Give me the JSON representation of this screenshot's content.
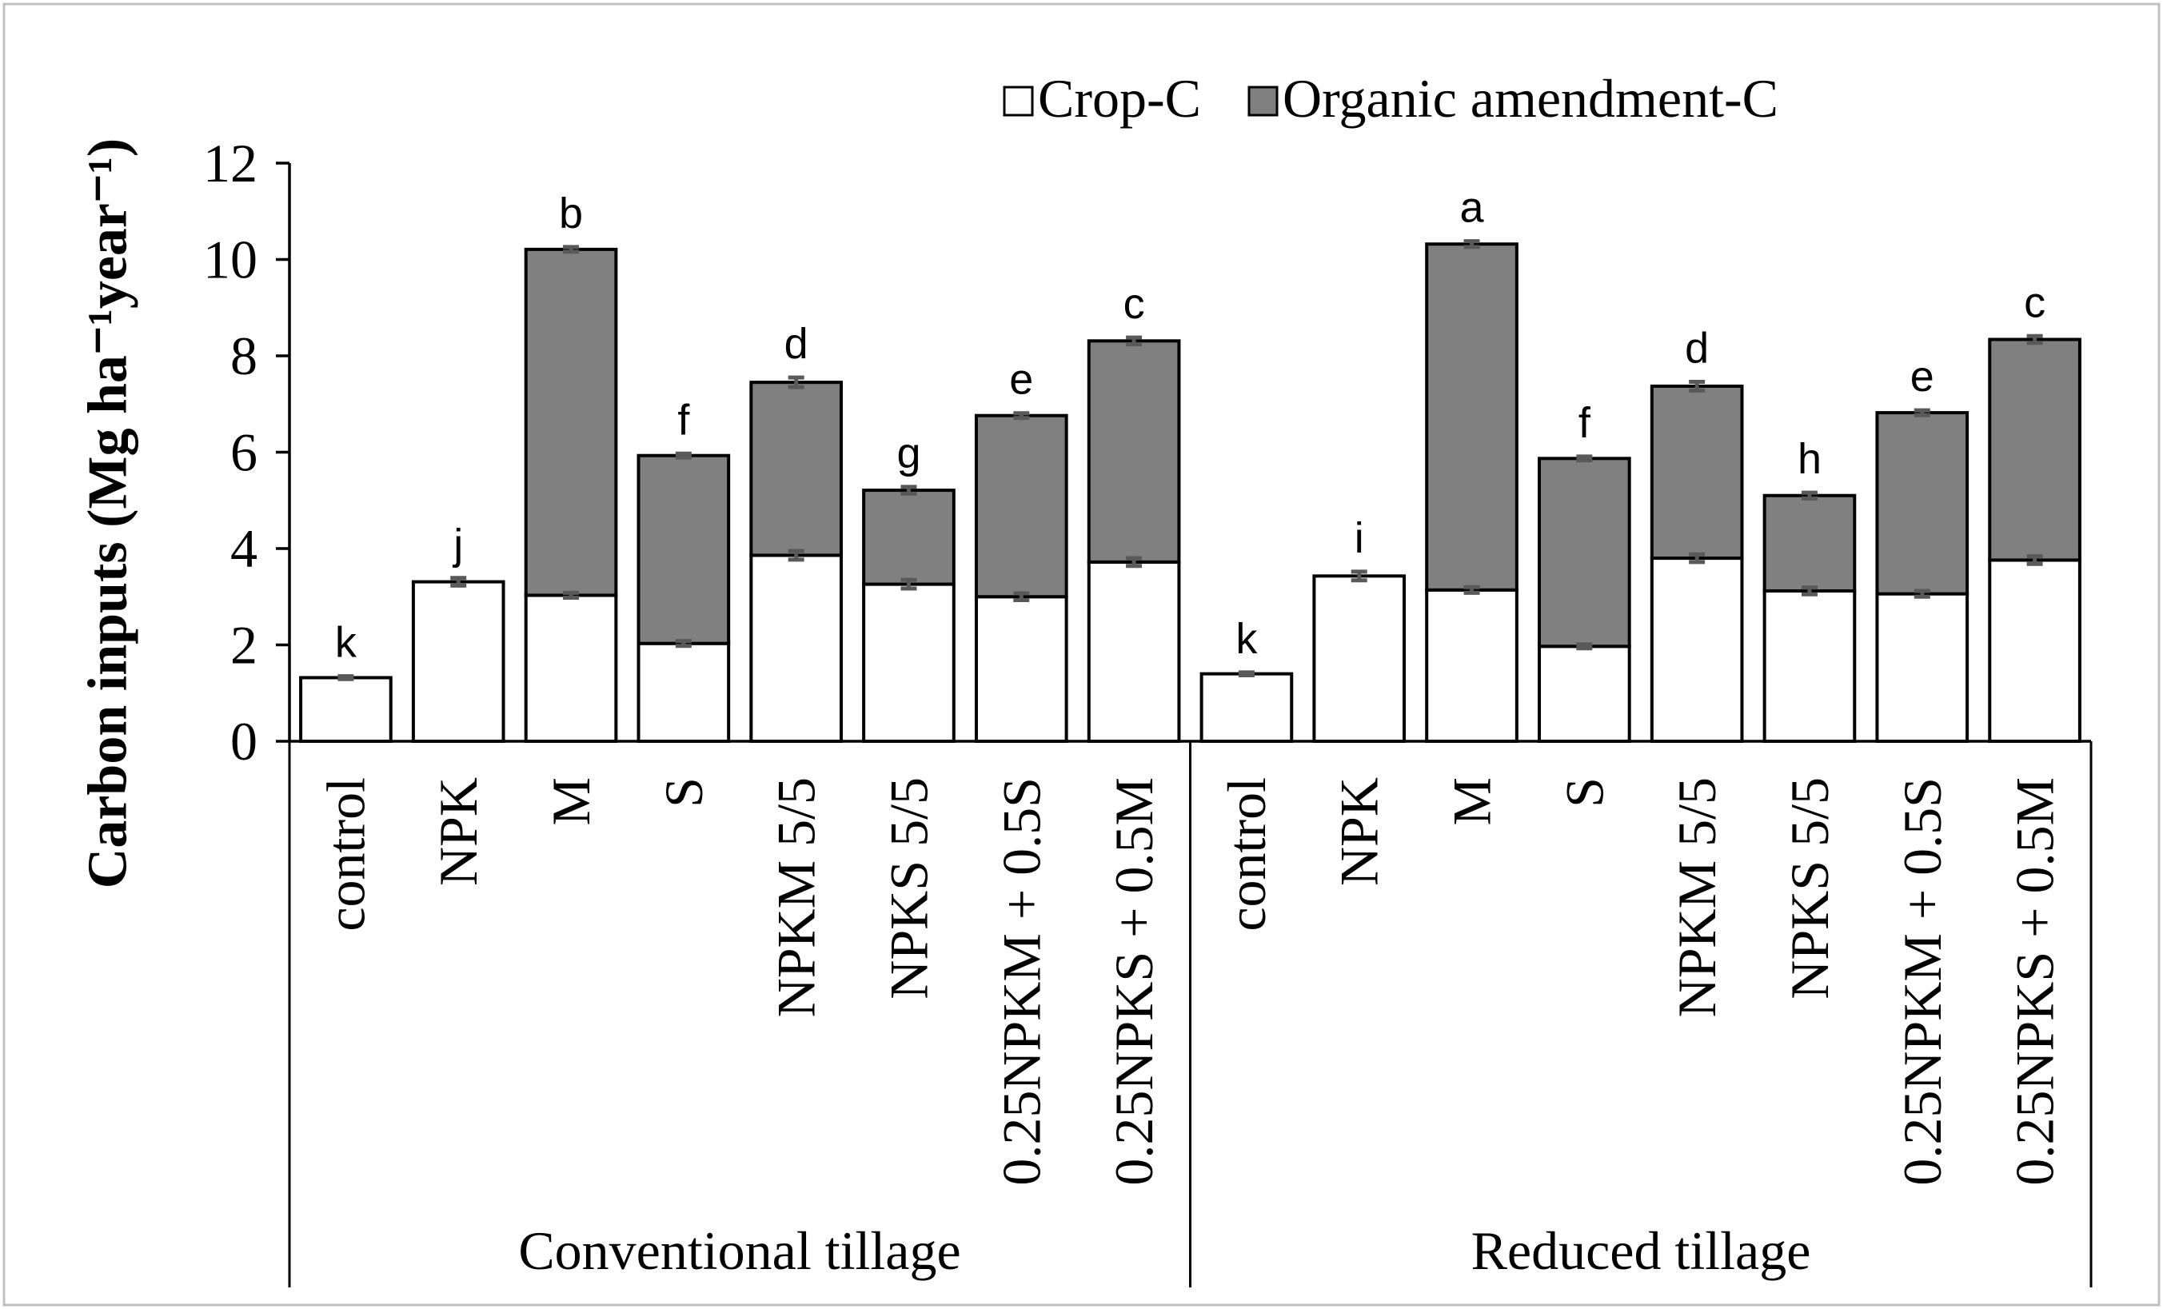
{
  "chart_data": {
    "type": "bar",
    "stacked": true,
    "ylabel": "Carbon inputs (Mg ha⁻¹year⁻¹)",
    "ylim": [
      0,
      12
    ],
    "yticks": [
      0,
      2,
      4,
      6,
      8,
      10,
      12
    ],
    "grid": false,
    "legend_position": "top",
    "groups": [
      "Conventional tillage",
      "Reduced tillage"
    ],
    "categories": [
      "control",
      "NPK",
      "M",
      "S",
      "NPKM 5/5",
      "NPKS 5/5",
      "0.25NPKM + 0.5S",
      "0.25NPKS + 0.5M"
    ],
    "series": [
      {
        "name": "Crop-C",
        "color": "#ffffff",
        "values": [
          [
            1.32,
            3.31,
            3.03,
            2.03,
            3.86,
            3.26,
            3.0,
            3.72
          ],
          [
            1.4,
            3.43,
            3.14,
            1.97,
            3.8,
            3.12,
            3.06,
            3.76
          ]
        ],
        "errors": [
          [
            0.03,
            0.08,
            0.05,
            0.05,
            0.09,
            0.09,
            0.07,
            0.08
          ],
          [
            0.03,
            0.09,
            0.06,
            0.04,
            0.08,
            0.07,
            0.06,
            0.08
          ]
        ]
      },
      {
        "name": "Organic amendment-C",
        "color": "#808080",
        "values": [
          [
            0,
            0,
            7.18,
            3.9,
            3.59,
            1.95,
            3.76,
            4.59
          ],
          [
            0,
            0,
            7.18,
            3.9,
            3.57,
            1.98,
            3.76,
            4.58
          ]
        ],
        "errors": [
          [
            0,
            0,
            0.05,
            0.04,
            0.1,
            0.07,
            0.05,
            0.07
          ],
          [
            0,
            0,
            0.06,
            0.04,
            0.09,
            0.06,
            0.05,
            0.07
          ]
        ]
      }
    ],
    "significance_letters": [
      [
        "k",
        "j",
        "b",
        "f",
        "d",
        "g",
        "e",
        "c"
      ],
      [
        "k",
        "i",
        "a",
        "f",
        "d",
        "h",
        "e",
        "c"
      ]
    ]
  }
}
